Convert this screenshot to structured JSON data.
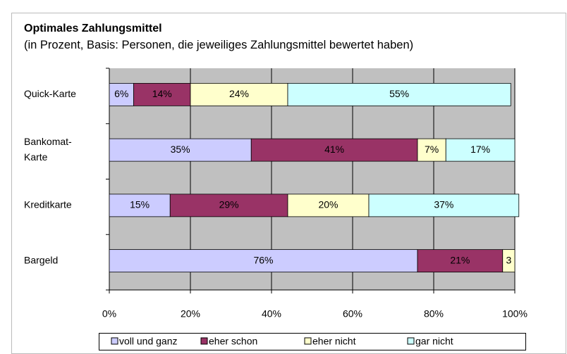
{
  "chart_data": {
    "type": "stacked_bar_horizontal",
    "title": "Optimales Zahlungsmittel",
    "subtitle": "(in Prozent, Basis: Personen, die jeweiliges Zahlungsmittel bewertet haben)",
    "categories": [
      "Quick-Karte",
      "Bankomat-Karte",
      "Kreditkarte",
      "Bargeld"
    ],
    "series": [
      {
        "name": "voll und ganz",
        "color": "#ccccff",
        "values": [
          6,
          35,
          15,
          76
        ],
        "value_labels": [
          "6%",
          "35%",
          "15%",
          "76%"
        ]
      },
      {
        "name": "eher schon",
        "color": "#993366",
        "values": [
          14,
          41,
          29,
          21
        ],
        "value_labels": [
          "14%",
          "41%",
          "29%",
          "21%"
        ]
      },
      {
        "name": "eher nicht",
        "color": "#ffffcc",
        "values": [
          24,
          7,
          20,
          3
        ],
        "value_labels": [
          "24%",
          "7%",
          "20%",
          "3"
        ]
      },
      {
        "name": "gar nicht",
        "color": "#ccffff",
        "values": [
          55,
          17,
          37,
          null
        ],
        "value_labels": [
          "55%",
          "17%",
          "37%",
          null
        ]
      }
    ],
    "xlim": [
      0,
      100
    ],
    "xticks": [
      {
        "value": 0,
        "label": "0%"
      },
      {
        "value": 20,
        "label": "20%"
      },
      {
        "value": 40,
        "label": "40%"
      },
      {
        "value": 60,
        "label": "60%"
      },
      {
        "value": 80,
        "label": "80%"
      },
      {
        "value": 100,
        "label": "100%"
      }
    ],
    "grid": true,
    "legend": "bottom"
  }
}
